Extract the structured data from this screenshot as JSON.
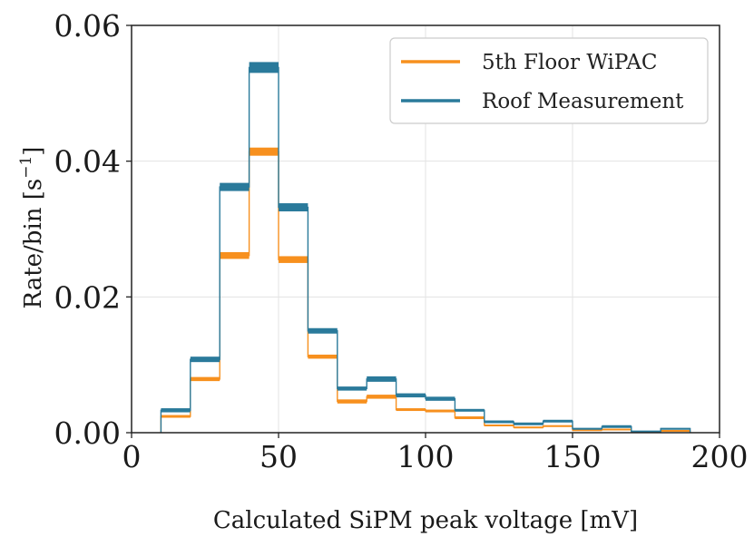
{
  "chart_data": {
    "type": "histogram-step",
    "xlabel": "Calculated SiPM peak voltage [mV]",
    "ylabel_main": "Rate/bin [s",
    "ylabel_sup": "−1",
    "ylabel_end": "]",
    "xlim": [
      0,
      200
    ],
    "ylim": [
      0,
      0.06
    ],
    "xticks": [
      0,
      50,
      100,
      150,
      200
    ],
    "xtick_labels": [
      "0",
      "50",
      "100",
      "150",
      "200"
    ],
    "yticks": [
      0,
      0.02,
      0.04,
      0.06
    ],
    "ytick_labels": [
      "0.00",
      "0.02",
      "0.04",
      "0.06"
    ],
    "grid": true,
    "legend_position": "top-right",
    "bin_edges": [
      10,
      20,
      30,
      40,
      50,
      60,
      70,
      80,
      90,
      100,
      110,
      120,
      130,
      140,
      150,
      160,
      170,
      180,
      190
    ],
    "series": [
      {
        "name": "Roof Measurement",
        "color": "#2a7a9b",
        "values": [
          0.0033,
          0.0108,
          0.0362,
          0.0538,
          0.0332,
          0.015,
          0.0065,
          0.0079,
          0.0055,
          0.005,
          0.0033,
          0.0016,
          0.0013,
          0.0017,
          0.0006,
          0.0009,
          0.0002,
          0.0006
        ],
        "errors": [
          0.0003,
          0.0004,
          0.0006,
          0.0008,
          0.0006,
          0.0004,
          0.0003,
          0.0004,
          0.0003,
          0.0003,
          0.0002,
          0.0002,
          0.0002,
          0.0002,
          0.0001,
          0.0002,
          0.0001,
          0.0001
        ]
      },
      {
        "name": "5th Floor WiPAC",
        "color": "#f7901e",
        "values": [
          0.0024,
          0.0079,
          0.0261,
          0.0414,
          0.0255,
          0.0112,
          0.0046,
          0.0053,
          0.0034,
          0.0032,
          0.0022,
          0.0011,
          0.0008,
          0.001,
          0.0004,
          0.0005,
          0.0001,
          0.0003
        ],
        "errors": [
          0.0002,
          0.0003,
          0.0005,
          0.0006,
          0.0005,
          0.0003,
          0.0003,
          0.0003,
          0.0002,
          0.0002,
          0.0002,
          0.0001,
          0.0001,
          0.0001,
          0.0001,
          0.0001,
          0.0001,
          0.0001
        ]
      }
    ]
  }
}
